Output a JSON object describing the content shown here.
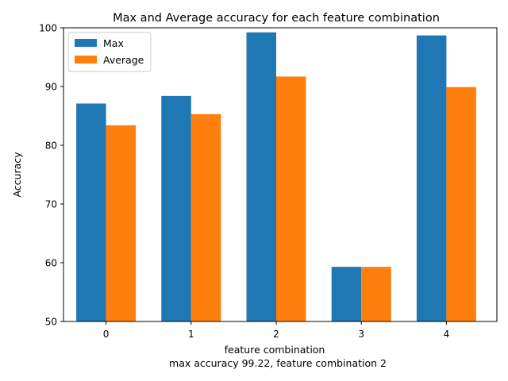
{
  "chart_data": {
    "type": "bar",
    "title": "Max and Average accuracy for each feature combination",
    "xlabel": "feature combination",
    "xlabel_sub": "max accuracy 99.22, feature combination 2",
    "ylabel": "Accuracy",
    "categories": [
      "0",
      "1",
      "2",
      "3",
      "4"
    ],
    "ylim": [
      50,
      100
    ],
    "yticks": [
      50,
      60,
      70,
      80,
      90,
      100
    ],
    "grid": false,
    "legend_position": "top-left",
    "series": [
      {
        "name": "Max",
        "color": "#1f77b4",
        "values": [
          87.1,
          88.4,
          99.22,
          59.3,
          98.7
        ]
      },
      {
        "name": "Average",
        "color": "#ff7f0e",
        "values": [
          83.4,
          85.3,
          91.7,
          59.3,
          89.9
        ]
      }
    ]
  }
}
